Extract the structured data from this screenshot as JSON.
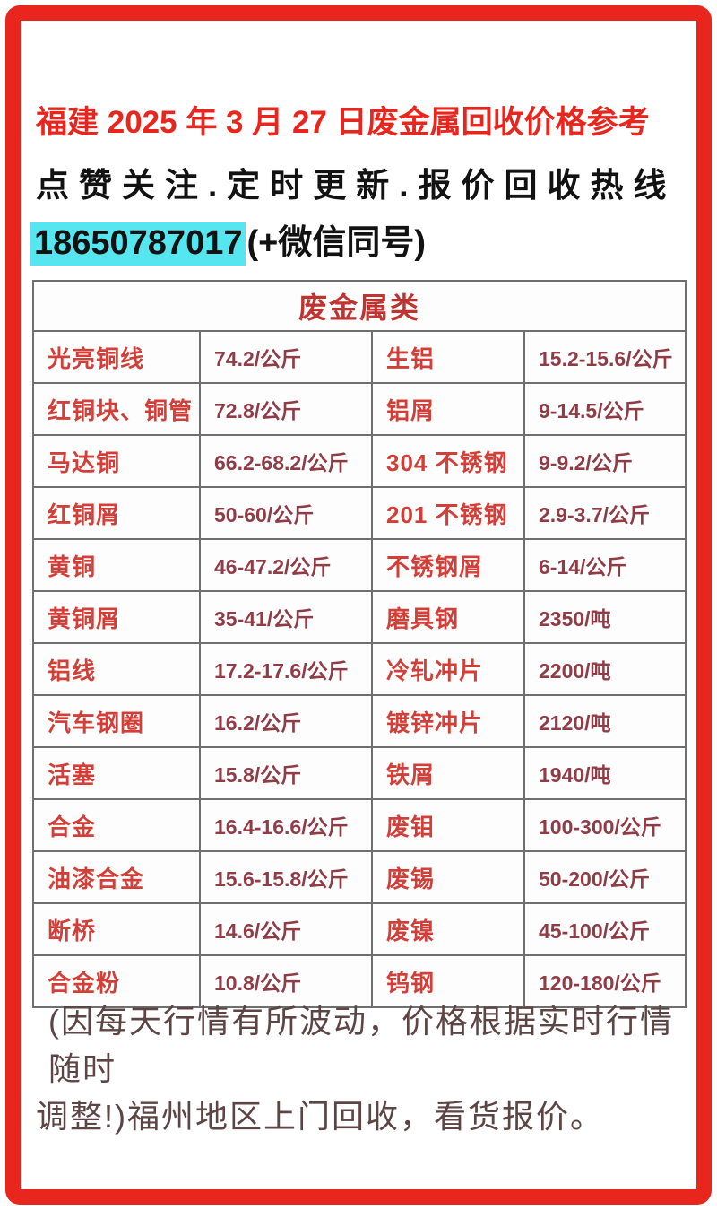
{
  "header": {
    "title": "福建 2025 年 3 月 27 日废金属回收价格参考",
    "subtitle": "点赞关注.定时更新.报价回收热线",
    "phone": "18650787017",
    "phone_suffix": "(+微信同号)"
  },
  "table": {
    "header": "废金属类",
    "rows": [
      [
        "光亮铜线",
        "74.2/公斤",
        "生铝",
        "15.2-15.6/公斤"
      ],
      [
        "红铜块、铜管",
        "72.8/公斤",
        "铝屑",
        "9-14.5/公斤"
      ],
      [
        "马达铜",
        "66.2-68.2/公斤",
        "304 不锈钢",
        "9-9.2/公斤"
      ],
      [
        "红铜屑",
        "50-60/公斤",
        "201 不锈钢",
        "2.9-3.7/公斤"
      ],
      [
        "黄铜",
        "46-47.2/公斤",
        "不锈钢屑",
        "6-14/公斤"
      ],
      [
        "黄铜屑",
        "35-41/公斤",
        "磨具钢",
        "2350/吨"
      ],
      [
        "铝线",
        "17.2-17.6/公斤",
        "冷轧冲片",
        "2200/吨"
      ],
      [
        "汽车钢圈",
        "16.2/公斤",
        "镀锌冲片",
        "2120/吨"
      ],
      [
        "活塞",
        "15.8/公斤",
        "铁屑",
        "1940/吨"
      ],
      [
        "合金",
        "16.4-16.6/公斤",
        "废钼",
        "100-300/公斤"
      ],
      [
        "油漆合金",
        "15.6-15.8/公斤",
        "废锡",
        "50-200/公斤"
      ],
      [
        "断桥",
        "14.6/公斤",
        "废镍",
        "45-100/公斤"
      ],
      [
        "合金粉",
        "10.8/公斤",
        "钨钢",
        "120-180/公斤"
      ]
    ]
  },
  "footer": {
    "line1": "(因每天行情有所波动，价格根据实时行情随时",
    "line2": "调整!)福州地区上门回收，看货报价。"
  },
  "colors": {
    "frame_red": "#e9261e",
    "title_red": "#e9261e",
    "table_header_red": "#bf3430",
    "item_label_red": "#d23f38",
    "price_value_maroon": "#8f3c46",
    "phone_highlight_cyan": "#56e6f0",
    "footer_brown": "#5d4545",
    "grid_gray": "#6f6f6f"
  }
}
